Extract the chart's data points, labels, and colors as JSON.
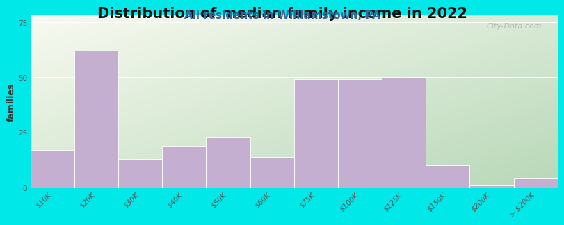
{
  "title": "Distribution of median family income in 2022",
  "subtitle": "All residents in Williamstown, PA",
  "categories": [
    "$10K",
    "$20K",
    "$30K",
    "$40K",
    "$50K",
    "$60K",
    "$75K",
    "$100K",
    "$125K",
    "$150K",
    "$200K",
    "> $200K"
  ],
  "values": [
    17,
    62,
    13,
    19,
    23,
    14,
    49,
    49,
    50,
    10,
    1,
    4
  ],
  "bar_color": "#c4afd0",
  "bar_edge_color": "#ffffff",
  "ylabel": "families",
  "ylim": [
    0,
    78
  ],
  "yticks": [
    0,
    25,
    50,
    75
  ],
  "background_outer": "#00e8e8",
  "grad_top_left": "#f0f5e8",
  "grad_bot_right": "#c8ddc8",
  "watermark": "City-Data.com",
  "title_fontsize": 15,
  "subtitle_fontsize": 11,
  "ylabel_fontsize": 9,
  "tick_fontsize": 7.5
}
